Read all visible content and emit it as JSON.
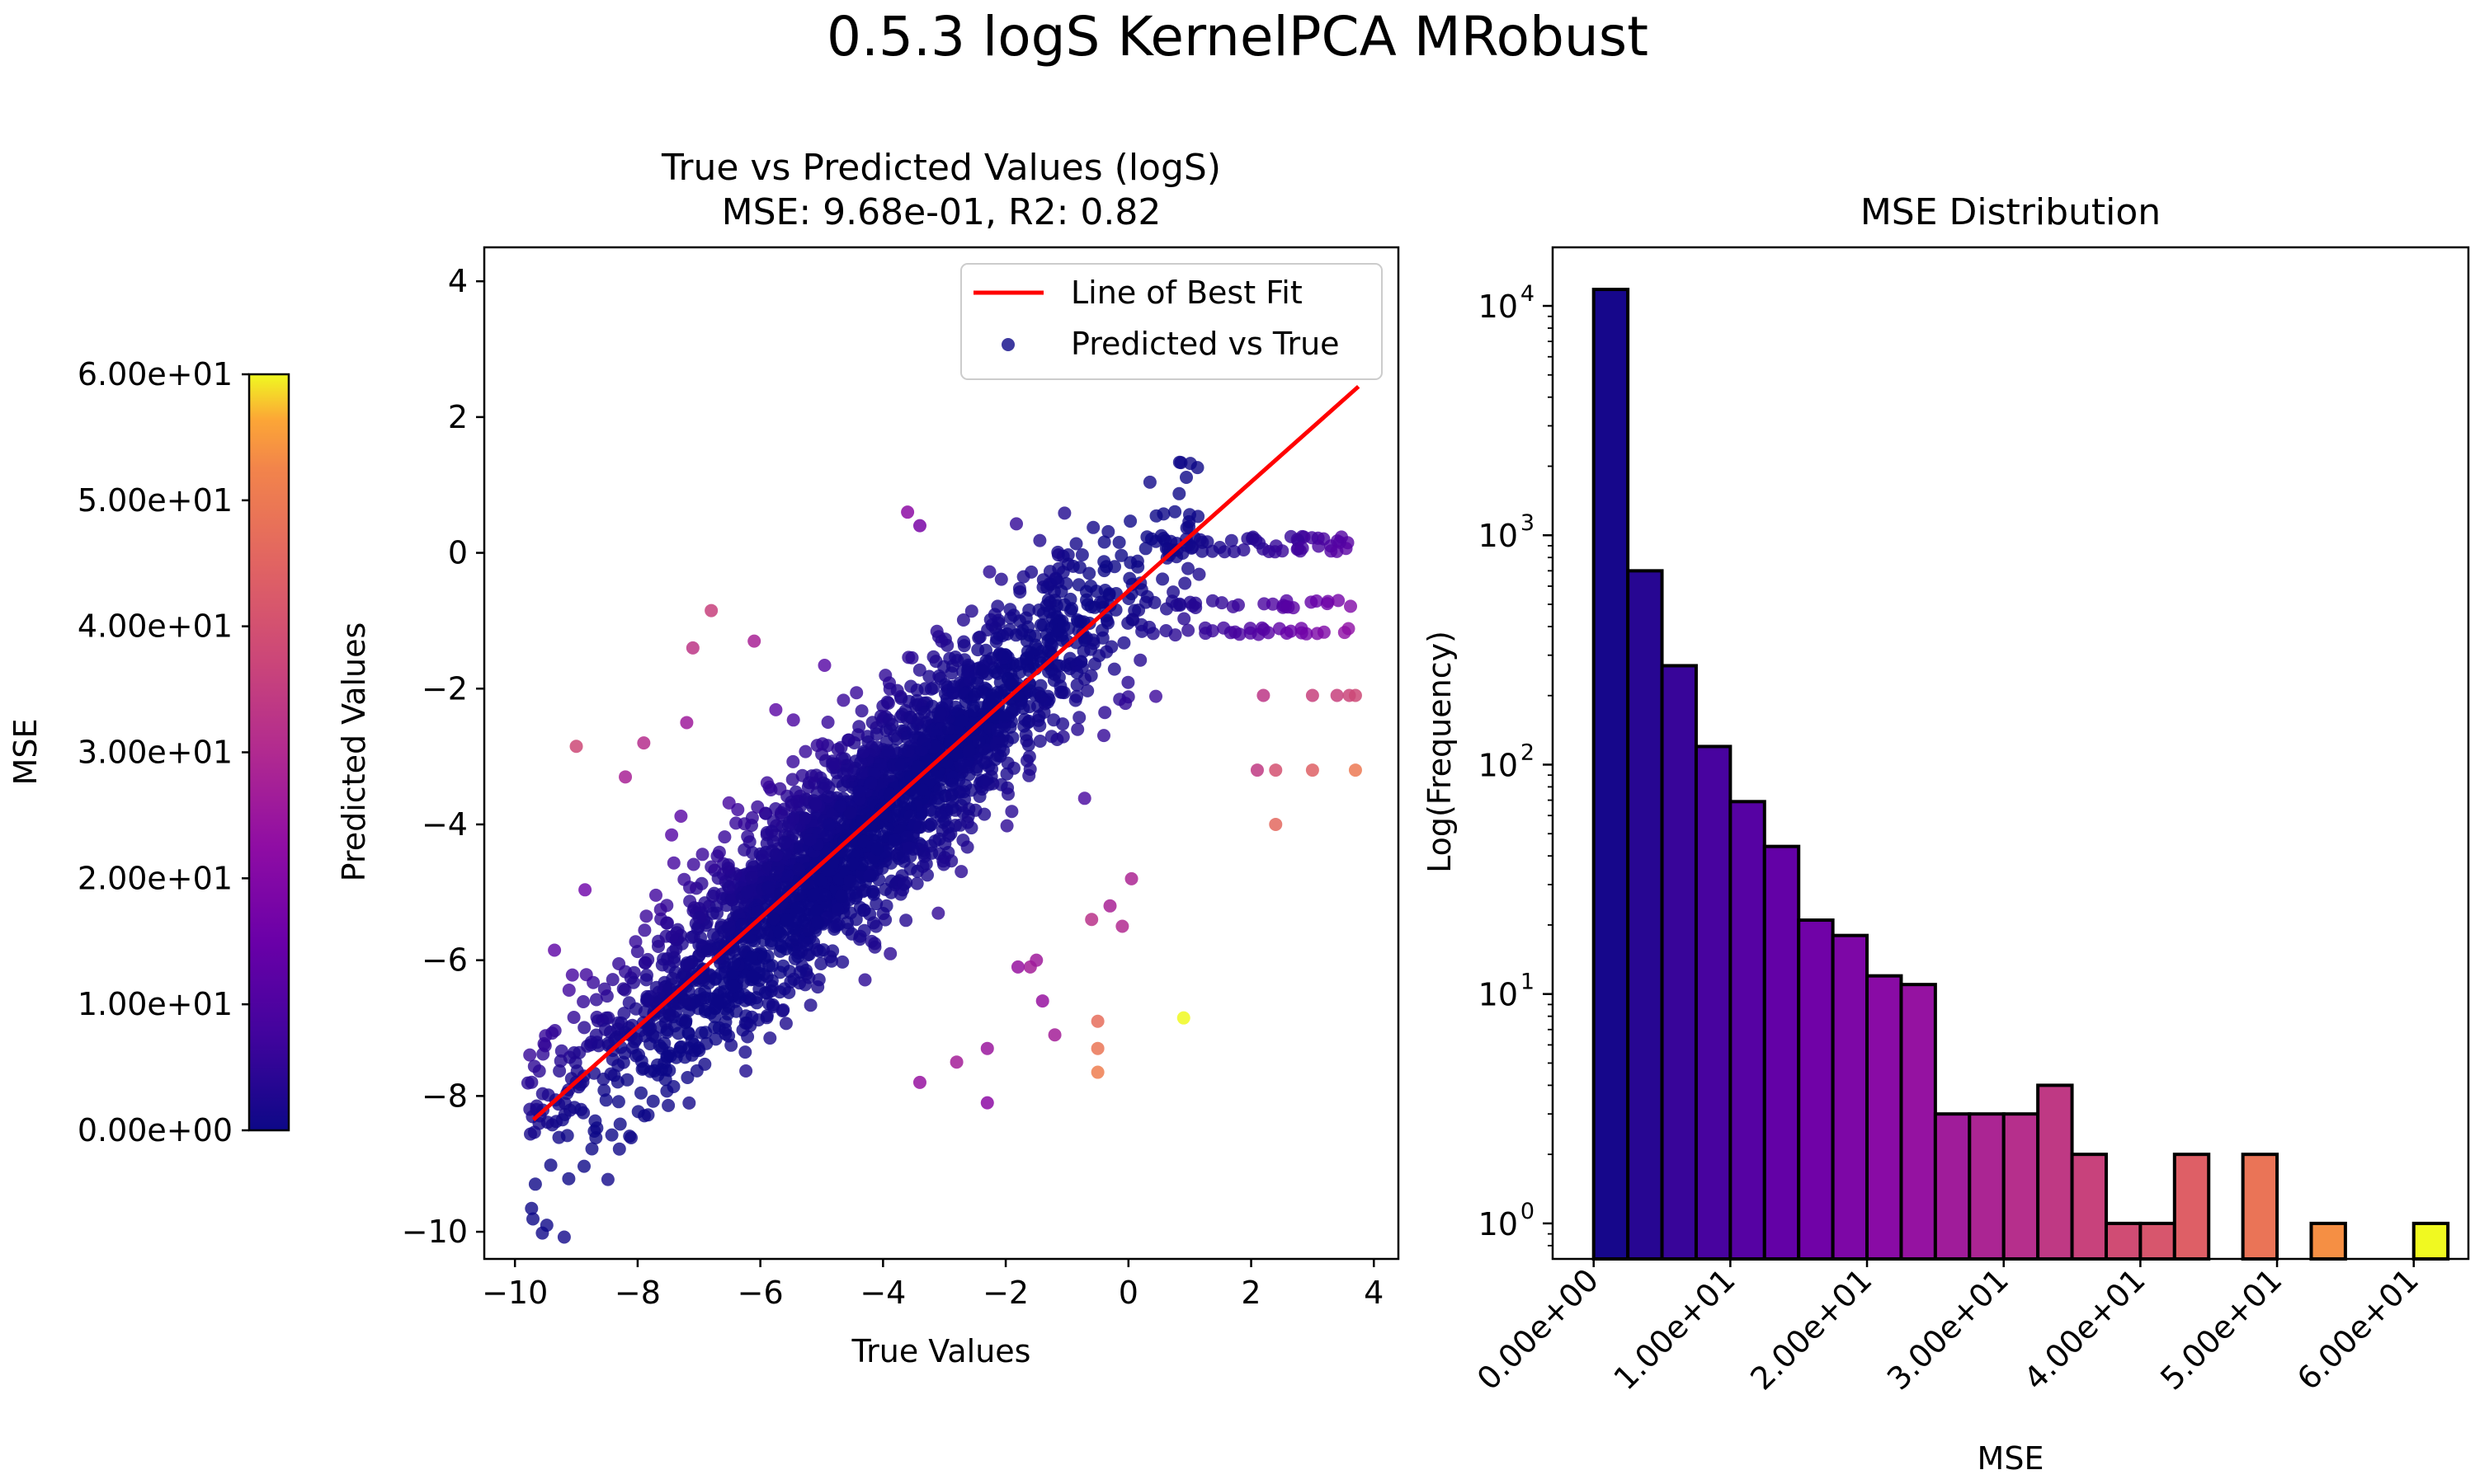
{
  "figure": {
    "title": "0.5.3 logS KernelPCA MRobust"
  },
  "colorbar": {
    "label": "MSE",
    "range": [
      0,
      60
    ],
    "ticks": [
      "0.00e+00",
      "1.00e+01",
      "2.00e+01",
      "3.00e+01",
      "4.00e+01",
      "5.00e+01",
      "6.00e+01"
    ],
    "tick_values": [
      0,
      10,
      20,
      30,
      40,
      50,
      60
    ],
    "colormap": "plasma"
  },
  "chart_data": [
    {
      "type": "scatter",
      "title_line1": "True vs Predicted Values (logS)",
      "title_line2": "MSE: 9.68e-01, R2: 0.82",
      "xlabel": "True Values",
      "ylabel": "Predicted Values",
      "xlim": [
        -10.5,
        4.4
      ],
      "ylim": [
        -10.4,
        4.5
      ],
      "xticks": [
        -10,
        -8,
        -6,
        -4,
        -2,
        0,
        2,
        4
      ],
      "xtick_labels": [
        "−10",
        "−8",
        "−6",
        "−4",
        "−2",
        "0",
        "2",
        "4"
      ],
      "yticks": [
        -10,
        -8,
        -6,
        -4,
        -2,
        0,
        2,
        4
      ],
      "ytick_labels": [
        "−10",
        "−8",
        "−6",
        "−4",
        "−2",
        "0",
        "2",
        "4"
      ],
      "legend": {
        "position": "upper right",
        "line_label": "Line of Best Fit",
        "scatter_label": "Predicted vs True"
      },
      "best_fit_line": {
        "x": [
          -9.7,
          3.75
        ],
        "y": [
          -8.35,
          2.45
        ],
        "color": "#ff0000"
      },
      "point_cloud": {
        "description_count": 12000,
        "trend": "predicted ≈ 0.80·true − 0.55, spread ~0.75",
        "x_range": [
          -9.8,
          1.3
        ],
        "plateau_y": 1.35
      },
      "outliers": [
        {
          "x": -9.0,
          "y": -2.85,
          "mse": 38
        },
        {
          "x": -6.8,
          "y": -0.85,
          "mse": 36
        },
        {
          "x": -7.1,
          "y": -1.4,
          "mse": 33
        },
        {
          "x": -6.1,
          "y": -1.3,
          "mse": 28
        },
        {
          "x": -7.9,
          "y": -2.8,
          "mse": 31
        },
        {
          "x": -8.2,
          "y": -3.3,
          "mse": 28
        },
        {
          "x": -7.2,
          "y": -2.5,
          "mse": 26
        },
        {
          "x": -3.6,
          "y": 0.6,
          "mse": 22
        },
        {
          "x": -3.4,
          "y": 0.4,
          "mse": 18
        },
        {
          "x": 3.4,
          "y": -2.1,
          "mse": 36
        },
        {
          "x": 3.6,
          "y": -2.1,
          "mse": 37
        },
        {
          "x": 3.7,
          "y": -2.1,
          "mse": 38
        },
        {
          "x": 2.2,
          "y": -2.1,
          "mse": 33
        },
        {
          "x": 3.0,
          "y": -2.1,
          "mse": 36
        },
        {
          "x": 2.4,
          "y": -3.2,
          "mse": 40
        },
        {
          "x": 3.0,
          "y": -3.2,
          "mse": 44
        },
        {
          "x": 3.7,
          "y": -3.2,
          "mse": 50
        },
        {
          "x": 2.1,
          "y": -3.2,
          "mse": 34
        },
        {
          "x": 2.4,
          "y": -4.0,
          "mse": 46
        },
        {
          "x": 0.9,
          "y": -6.85,
          "mse": 60
        },
        {
          "x": -0.5,
          "y": -6.9,
          "mse": 47
        },
        {
          "x": -0.5,
          "y": -7.3,
          "mse": 49
        },
        {
          "x": -0.5,
          "y": -7.65,
          "mse": 51
        },
        {
          "x": -0.6,
          "y": -5.4,
          "mse": 32
        },
        {
          "x": -0.3,
          "y": -5.2,
          "mse": 28
        },
        {
          "x": 0.05,
          "y": -4.8,
          "mse": 29
        },
        {
          "x": -0.1,
          "y": -5.5,
          "mse": 30
        },
        {
          "x": -1.6,
          "y": -6.1,
          "mse": 27
        },
        {
          "x": -1.5,
          "y": -6.0,
          "mse": 26
        },
        {
          "x": -1.8,
          "y": -6.1,
          "mse": 24
        },
        {
          "x": -1.4,
          "y": -6.6,
          "mse": 24
        },
        {
          "x": -2.3,
          "y": -7.3,
          "mse": 25
        },
        {
          "x": -3.4,
          "y": -7.8,
          "mse": 24
        },
        {
          "x": -2.8,
          "y": -7.5,
          "mse": 27
        },
        {
          "x": -2.3,
          "y": -8.1,
          "mse": 22
        },
        {
          "x": -1.2,
          "y": -7.1,
          "mse": 27
        }
      ]
    },
    {
      "type": "bar",
      "subtype": "histogram",
      "title": "MSE Distribution",
      "xlabel": "MSE",
      "ylabel": "Log(Frequency)",
      "yscale": "log",
      "ylim": [
        0.7,
        18000
      ],
      "xlim": [
        -3,
        64
      ],
      "xticks": [
        0,
        10,
        20,
        30,
        40,
        50,
        60
      ],
      "xtick_labels": [
        "0.00e+00",
        "1.00e+01",
        "2.00e+01",
        "3.00e+01",
        "4.00e+01",
        "5.00e+01",
        "6.00e+01"
      ],
      "yticks": [
        1,
        10,
        100,
        1000,
        10000
      ],
      "ytick_labels": [
        "10",
        "10",
        "10",
        "10",
        "10"
      ],
      "ytick_exponents": [
        "0",
        "1",
        "2",
        "3",
        "4"
      ],
      "bin_width": 2.5,
      "bin_start": 0,
      "counts": [
        11800,
        700,
        270,
        120,
        69,
        44,
        21,
        18,
        12,
        11,
        3,
        3,
        3,
        4,
        2,
        1,
        1,
        2,
        0,
        2,
        0,
        1,
        0,
        0,
        1
      ]
    }
  ]
}
